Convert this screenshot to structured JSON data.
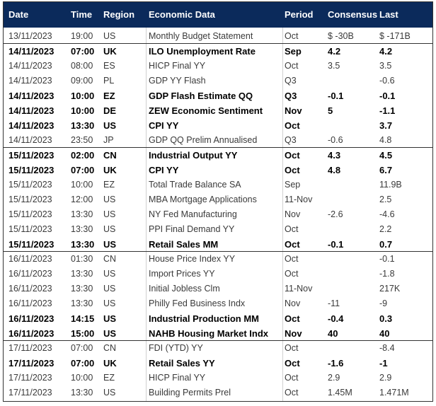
{
  "table": {
    "columns": [
      "Date",
      "Time",
      "Region",
      "Economic Data",
      "Period",
      "Consensus",
      "Last"
    ],
    "groups": [
      {
        "rows": [
          {
            "bold": false,
            "cells": [
              "13/11/2023",
              "19:00",
              "US",
              "Monthly Budget Statement",
              "Oct",
              "$ -30B",
              "$ -171B"
            ]
          }
        ]
      },
      {
        "rows": [
          {
            "bold": true,
            "cells": [
              "14/11/2023",
              "07:00",
              "UK",
              "ILO Unemployment Rate",
              "Sep",
              "4.2",
              "4.2"
            ]
          },
          {
            "bold": false,
            "cells": [
              "14/11/2023",
              "08:00",
              "ES",
              "HICP Final YY",
              "Oct",
              "3.5",
              "3.5"
            ]
          },
          {
            "bold": false,
            "cells": [
              "14/11/2023",
              "09:00",
              "PL",
              "GDP YY Flash",
              "Q3",
              null,
              "-0.6"
            ]
          },
          {
            "bold": true,
            "cells": [
              "14/11/2023",
              "10:00",
              "EZ",
              "GDP Flash Estimate QQ",
              "Q3",
              "-0.1",
              "-0.1"
            ]
          },
          {
            "bold": true,
            "cells": [
              "14/11/2023",
              "10:00",
              "DE",
              "ZEW Economic Sentiment",
              "Nov",
              "5",
              "-1.1"
            ]
          },
          {
            "bold": true,
            "cells": [
              "14/11/2023",
              "13:30",
              "US",
              "CPI YY",
              "Oct",
              null,
              "3.7"
            ]
          },
          {
            "bold": false,
            "cells": [
              "14/11/2023",
              "23:50",
              "JP",
              "GDP QQ Prelim Annualised",
              "Q3",
              "-0.6",
              "4.8"
            ]
          }
        ]
      },
      {
        "rows": [
          {
            "bold": true,
            "cells": [
              "15/11/2023",
              "02:00",
              "CN",
              "Industrial Output YY",
              "Oct",
              "4.3",
              "4.5"
            ]
          },
          {
            "bold": true,
            "cells": [
              "15/11/2023",
              "07:00",
              "UK",
              "CPI YY",
              "Oct",
              "4.8",
              "6.7"
            ]
          },
          {
            "bold": false,
            "cells": [
              "15/11/2023",
              "10:00",
              "EZ",
              "Total Trade Balance SA",
              "Sep",
              null,
              "11.9B"
            ]
          },
          {
            "bold": false,
            "cells": [
              "15/11/2023",
              "12:00",
              "US",
              "MBA Mortgage Applications",
              "11-Nov",
              null,
              "2.5"
            ]
          },
          {
            "bold": false,
            "cells": [
              "15/11/2023",
              "13:30",
              "US",
              "NY Fed Manufacturing",
              "Nov",
              "-2.6",
              "-4.6"
            ]
          },
          {
            "bold": false,
            "cells": [
              "15/11/2023",
              "13:30",
              "US",
              "PPI Final Demand YY",
              "Oct",
              null,
              "2.2"
            ]
          },
          {
            "bold": true,
            "cells": [
              "15/11/2023",
              "13:30",
              "US",
              "Retail Sales MM",
              "Oct",
              "-0.1",
              "0.7"
            ]
          }
        ]
      },
      {
        "rows": [
          {
            "bold": false,
            "cells": [
              "16/11/2023",
              "01:30",
              "CN",
              "House Price Index YY",
              "Oct",
              null,
              "-0.1"
            ]
          },
          {
            "bold": false,
            "cells": [
              "16/11/2023",
              "13:30",
              "US",
              "Import Prices YY",
              "Oct",
              null,
              "-1.8"
            ]
          },
          {
            "bold": false,
            "cells": [
              "16/11/2023",
              "13:30",
              "US",
              "Initial Jobless Clm",
              "11-Nov",
              null,
              "217K"
            ]
          },
          {
            "bold": false,
            "cells": [
              "16/11/2023",
              "13:30",
              "US",
              "Philly Fed Business Indx",
              "Nov",
              "-11",
              "-9"
            ]
          },
          {
            "bold": true,
            "cells": [
              "16/11/2023",
              "14:15",
              "US",
              "Industrial Production MM",
              "Oct",
              "-0.4",
              "0.3"
            ]
          },
          {
            "bold": true,
            "cells": [
              "16/11/2023",
              "15:00",
              "US",
              "NAHB Housing Market Indx",
              "Nov",
              "40",
              "40"
            ]
          }
        ]
      },
      {
        "rows": [
          {
            "bold": false,
            "cells": [
              "17/11/2023",
              "07:00",
              "CN",
              "FDI (YTD) YY",
              "Oct",
              null,
              "-8.4"
            ]
          },
          {
            "bold": true,
            "cells": [
              "17/11/2023",
              "07:00",
              "UK",
              "Retail Sales YY",
              "Oct",
              "-1.6",
              "-1"
            ]
          },
          {
            "bold": false,
            "cells": [
              "17/11/2023",
              "10:00",
              "EZ",
              "HICP Final YY",
              "Oct",
              "2.9",
              "2.9"
            ]
          },
          {
            "bold": false,
            "cells": [
              "17/11/2023",
              "13:30",
              "US",
              "Building Permits Prel",
              "Oct",
              "1.45M",
              "1.471M"
            ]
          }
        ]
      }
    ]
  }
}
